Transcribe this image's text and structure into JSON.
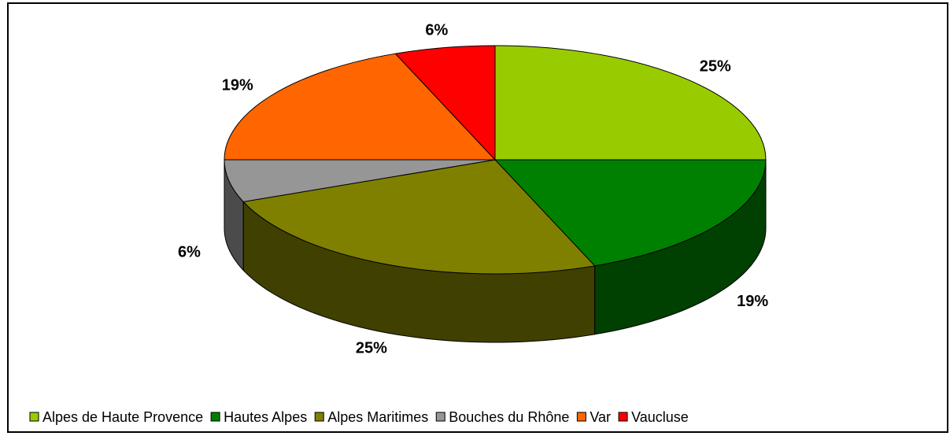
{
  "chart_data": {
    "type": "pie3d",
    "categories": [
      "Alpes de Haute Provence",
      "Hautes Alpes",
      "Alpes Maritimes",
      "Bouches du Rhône",
      "Var",
      "Vaucluse"
    ],
    "values": [
      25,
      19,
      25,
      6,
      19,
      6
    ],
    "value_labels": [
      "25%",
      "19%",
      "25%",
      "6%",
      "19%",
      "6%"
    ],
    "colors": [
      "#99cc00",
      "#008000",
      "#808000",
      "#969696",
      "#ff6600",
      "#ff0000"
    ],
    "legend": "bottom"
  }
}
